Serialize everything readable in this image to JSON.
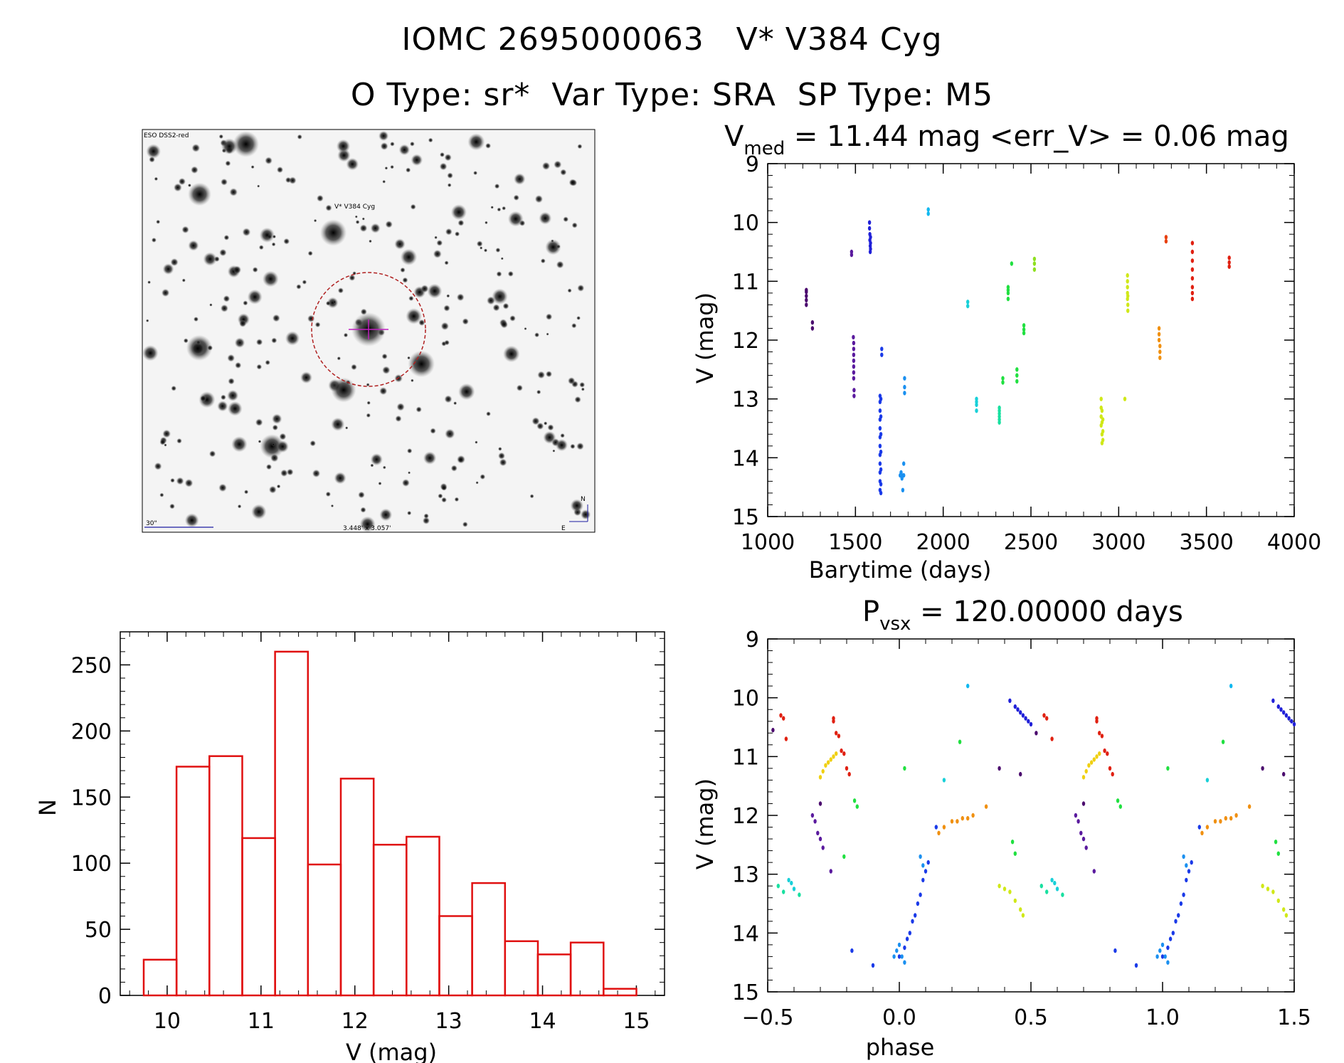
{
  "header": {
    "title_line1": "IOMC 2695000063   V* V384 Cyg",
    "title_line2": "O Type: sr*  Var Type: SRA  SP Type: M5"
  },
  "finder": {
    "survey_label": "ESO DSS2-red",
    "target_label": "V* V384 Cyg",
    "scale_label": "30\"",
    "size_label": "3.448' x 3.057'",
    "north_label": "N",
    "east_label": "E",
    "label_color": "#1a1aa0",
    "circle_color": "#b02020"
  },
  "chart_data": [
    {
      "type": "scatter",
      "id": "lightcurve",
      "title_main": "V",
      "title_sub": "med",
      "title_rest": " = 11.44 mag <err_V> = 0.06 mag",
      "xlabel": "Barytime (days)",
      "ylabel": "V (mag)",
      "xlim": [
        1000,
        4000
      ],
      "ylim": [
        15,
        9
      ],
      "x_ticks": [
        "1000",
        "1500",
        "2000",
        "2500",
        "3000",
        "3500",
        "4000"
      ],
      "y_ticks": [
        "9",
        "10",
        "11",
        "12",
        "13",
        "14",
        "15"
      ],
      "series": [
        {
          "color": "#4b0a6e",
          "x": [
            1220,
            1220,
            1220,
            1220,
            1220,
            1255,
            1255
          ],
          "y": [
            11.15,
            11.25,
            11.32,
            11.4,
            11.18,
            11.7,
            11.8
          ]
        },
        {
          "color": "#5a1a9e",
          "x": [
            1478,
            1478,
            1488,
            1490,
            1490,
            1490,
            1490,
            1490,
            1490,
            1490,
            1492,
            1492
          ],
          "y": [
            10.5,
            10.55,
            11.95,
            12.05,
            12.15,
            12.25,
            12.35,
            12.45,
            12.55,
            12.65,
            12.85,
            12.95
          ]
        },
        {
          "color": "#2020d8",
          "x": [
            1580,
            1580,
            1582,
            1582,
            1584,
            1584,
            1586,
            1586,
            1586
          ],
          "y": [
            10.0,
            10.1,
            10.2,
            10.3,
            10.4,
            10.5,
            10.25,
            10.35,
            10.45
          ]
        },
        {
          "color": "#1a3ae8",
          "x": [
            1640,
            1640,
            1640,
            1640,
            1640,
            1640,
            1640,
            1640,
            1640,
            1640,
            1640,
            1640,
            1645,
            1645,
            1645,
            1645,
            1645,
            1645,
            1645,
            1650,
            1650
          ],
          "y": [
            12.95,
            13.05,
            13.2,
            13.35,
            13.5,
            13.65,
            13.8,
            13.95,
            14.1,
            14.25,
            14.4,
            14.55,
            13.0,
            13.3,
            13.6,
            13.9,
            14.2,
            14.45,
            14.6,
            12.15,
            12.25
          ]
        },
        {
          "color": "#1a90f0",
          "x": [
            1755,
            1760,
            1765,
            1765,
            1770,
            1775,
            1775,
            1780,
            1780,
            1780
          ],
          "y": [
            14.3,
            14.25,
            14.3,
            14.35,
            14.55,
            14.1,
            14.3,
            12.65,
            12.8,
            12.9
          ]
        },
        {
          "color": "#10b8f0",
          "x": [
            1915,
            1915
          ],
          "y": [
            9.78,
            9.85
          ]
        },
        {
          "color": "#18d0d8",
          "x": [
            2140,
            2140,
            2190,
            2190,
            2190,
            2190
          ],
          "y": [
            11.35,
            11.42,
            13.0,
            13.05,
            13.1,
            13.2
          ]
        },
        {
          "color": "#18e0a0",
          "x": [
            2320,
            2320,
            2320,
            2320,
            2320,
            2320
          ],
          "y": [
            13.15,
            13.25,
            13.3,
            13.35,
            13.4,
            13.2
          ]
        },
        {
          "color": "#20e040",
          "x": [
            2340,
            2340,
            2370,
            2370,
            2370,
            2370,
            2390,
            2420,
            2420,
            2420,
            2460,
            2460,
            2460
          ],
          "y": [
            12.65,
            12.72,
            11.1,
            11.15,
            11.2,
            11.3,
            10.7,
            12.5,
            12.6,
            12.7,
            11.75,
            11.82,
            11.88
          ]
        },
        {
          "color": "#8ee020",
          "x": [
            2520,
            2520,
            2520
          ],
          "y": [
            10.62,
            10.7,
            10.8
          ]
        },
        {
          "color": "#d0e818",
          "x": [
            2900,
            2900,
            2900,
            2900,
            2905,
            2905,
            2905,
            2905,
            2910,
            2910,
            2910,
            3050,
            3050,
            3050,
            3050,
            3050,
            3052,
            3052,
            3052,
            3035
          ],
          "y": [
            13.0,
            13.15,
            13.3,
            13.45,
            13.2,
            13.4,
            13.6,
            13.75,
            13.35,
            13.55,
            13.7,
            10.9,
            11.0,
            11.1,
            11.2,
            11.3,
            11.4,
            11.5,
            11.25,
            13.0
          ]
        },
        {
          "color": "#f09010",
          "x": [
            3230,
            3230,
            3230,
            3235,
            3235,
            3235
          ],
          "y": [
            11.8,
            11.9,
            12.0,
            12.1,
            12.2,
            12.3
          ]
        },
        {
          "color": "#e84010",
          "x": [
            3270,
            3270
          ],
          "y": [
            10.25,
            10.32
          ]
        },
        {
          "color": "#e02010",
          "x": [
            3420,
            3420,
            3420,
            3420,
            3420,
            3420,
            3420,
            3420,
            3630,
            3630,
            3630
          ],
          "y": [
            10.35,
            10.5,
            10.65,
            10.8,
            10.95,
            11.1,
            11.2,
            11.3,
            10.6,
            10.68,
            10.75
          ]
        }
      ]
    },
    {
      "type": "bar",
      "id": "histogram",
      "xlabel": "V (mag)",
      "ylabel": "N",
      "xlim": [
        9.5,
        15.3
      ],
      "ylim": [
        0,
        275
      ],
      "x_ticks": [
        "10",
        "11",
        "12",
        "13",
        "14",
        "15"
      ],
      "y_ticks": [
        "0",
        "50",
        "100",
        "150",
        "200",
        "250"
      ],
      "bin_edges": [
        9.75,
        10.1,
        10.45,
        10.8,
        11.15,
        11.5,
        11.85,
        12.2,
        12.55,
        12.9,
        13.25,
        13.6,
        13.95,
        14.3,
        14.65,
        15.0
      ],
      "values": [
        27,
        173,
        181,
        119,
        260,
        99,
        164,
        114,
        120,
        60,
        85,
        41,
        31,
        40,
        5
      ],
      "color": "#e01010"
    },
    {
      "type": "scatter",
      "id": "phased",
      "title_main": "P",
      "title_sub": "vsx",
      "title_rest": " = 120.00000 days",
      "xlabel": "phase",
      "ylabel": "V (mag)",
      "xlim": [
        -0.5,
        1.5
      ],
      "ylim": [
        15,
        9
      ],
      "x_ticks": [
        "−0.5",
        "0.0",
        "0.5",
        "1.0",
        "1.5"
      ],
      "y_ticks": [
        "9",
        "10",
        "11",
        "12",
        "13",
        "14",
        "15"
      ],
      "series": [
        {
          "color": "#e02010",
          "x": [
            -0.45,
            -0.44,
            -0.43,
            -0.25,
            -0.25,
            -0.24,
            -0.23,
            -0.22,
            -0.21,
            -0.2,
            -0.19,
            0.55,
            0.56,
            0.58,
            0.75,
            0.75,
            0.76,
            0.77,
            0.78,
            0.79,
            0.8,
            0.81
          ],
          "y": [
            10.3,
            10.35,
            10.7,
            10.35,
            10.4,
            10.6,
            10.65,
            10.9,
            10.95,
            11.2,
            11.3,
            10.3,
            10.35,
            10.7,
            10.35,
            10.4,
            10.6,
            10.65,
            10.9,
            10.95,
            11.2,
            11.3
          ]
        },
        {
          "color": "#f0d010",
          "x": [
            -0.3,
            -0.29,
            -0.28,
            -0.27,
            -0.26,
            -0.25,
            -0.24,
            0.7,
            0.71,
            0.72,
            0.73,
            0.74,
            0.75,
            0.76
          ],
          "y": [
            11.35,
            11.25,
            11.15,
            11.1,
            11.05,
            11.0,
            10.95,
            11.35,
            11.25,
            11.15,
            11.1,
            11.05,
            11.0,
            10.95
          ]
        },
        {
          "color": "#f09010",
          "x": [
            0.15,
            0.17,
            0.2,
            0.22,
            0.24,
            0.26,
            0.28,
            0.33,
            1.15,
            1.17,
            1.2,
            1.22,
            1.24,
            1.26,
            1.28,
            1.33
          ],
          "y": [
            12.3,
            12.2,
            12.1,
            12.1,
            12.05,
            12.05,
            12.0,
            11.85,
            12.3,
            12.2,
            12.1,
            12.1,
            12.05,
            12.05,
            12.0,
            11.85
          ]
        },
        {
          "color": "#5a1a9e",
          "x": [
            -0.33,
            -0.32,
            -0.31,
            -0.3,
            -0.29,
            -0.26,
            0.67,
            0.68,
            0.69,
            0.7,
            0.71,
            0.74
          ],
          "y": [
            12.0,
            12.1,
            12.3,
            12.4,
            12.55,
            12.95,
            12.0,
            12.1,
            12.3,
            12.4,
            12.55,
            12.95
          ]
        },
        {
          "color": "#4b0a6e",
          "x": [
            -0.48,
            -0.3,
            0.38,
            0.46,
            0.52,
            0.7,
            1.38,
            1.46
          ],
          "y": [
            10.55,
            11.8,
            11.2,
            11.3,
            10.6,
            11.8,
            11.2,
            11.3
          ]
        },
        {
          "color": "#2020d8",
          "x": [
            0.42,
            0.44,
            0.45,
            0.46,
            0.47,
            0.48,
            0.49,
            0.5,
            1.42,
            1.44,
            1.45,
            1.46,
            1.47,
            1.48,
            1.49,
            1.5
          ],
          "y": [
            10.05,
            10.15,
            10.2,
            10.25,
            10.3,
            10.35,
            10.4,
            10.45,
            10.05,
            10.15,
            10.2,
            10.25,
            10.3,
            10.35,
            10.4,
            10.45
          ]
        },
        {
          "color": "#1a3ae8",
          "x": [
            0.0,
            0.02,
            0.03,
            0.04,
            0.05,
            0.06,
            0.07,
            0.08,
            0.09,
            0.1,
            0.11,
            0.14,
            -0.1,
            1.0,
            1.02,
            1.03,
            1.04,
            1.05,
            1.06,
            1.07,
            1.08,
            1.09,
            1.1,
            1.11,
            1.14,
            0.9,
            -0.18,
            0.82
          ],
          "y": [
            14.4,
            14.25,
            14.1,
            14.0,
            13.8,
            13.7,
            13.5,
            13.35,
            13.1,
            12.95,
            12.8,
            12.2,
            14.55,
            14.4,
            14.25,
            14.1,
            14.0,
            13.8,
            13.7,
            13.5,
            13.35,
            13.1,
            12.95,
            12.8,
            12.2,
            14.55,
            14.3,
            14.3
          ]
        },
        {
          "color": "#1a90f0",
          "x": [
            -0.02,
            -0.01,
            0.0,
            0.01,
            0.02,
            0.08,
            0.09,
            0.98,
            0.99,
            1.0,
            1.01,
            1.02,
            1.08,
            1.09
          ],
          "y": [
            14.4,
            14.3,
            14.2,
            14.4,
            14.5,
            12.7,
            12.85,
            14.4,
            14.3,
            14.2,
            14.4,
            14.5,
            12.7,
            12.85
          ]
        },
        {
          "color": "#10b8f0",
          "x": [
            0.26,
            1.26
          ],
          "y": [
            9.8,
            9.8
          ]
        },
        {
          "color": "#18d0d8",
          "x": [
            -0.42,
            -0.41,
            -0.4,
            0.17,
            0.58,
            0.59,
            0.6,
            1.17
          ],
          "y": [
            13.1,
            13.15,
            13.25,
            11.4,
            13.1,
            13.15,
            13.25,
            11.4
          ]
        },
        {
          "color": "#18e0a0",
          "x": [
            -0.46,
            -0.44,
            -0.38,
            0.54,
            0.56,
            0.62
          ],
          "y": [
            13.2,
            13.3,
            13.35,
            13.2,
            13.3,
            13.35
          ]
        },
        {
          "color": "#20e040",
          "x": [
            -0.17,
            -0.16,
            -0.21,
            0.02,
            0.23,
            0.43,
            0.44,
            0.83,
            0.84,
            1.02,
            1.23,
            1.43,
            1.44
          ],
          "y": [
            11.75,
            11.85,
            12.7,
            11.2,
            10.75,
            12.45,
            12.65,
            11.75,
            11.85,
            11.2,
            10.75,
            12.45,
            12.65
          ]
        },
        {
          "color": "#d0e818",
          "x": [
            0.38,
            0.4,
            0.42,
            0.44,
            0.46,
            0.47,
            1.38,
            1.4,
            1.42,
            1.44,
            1.46,
            1.47
          ],
          "y": [
            13.2,
            13.25,
            13.3,
            13.45,
            13.6,
            13.7,
            13.2,
            13.25,
            13.3,
            13.45,
            13.6,
            13.7
          ]
        }
      ]
    }
  ]
}
